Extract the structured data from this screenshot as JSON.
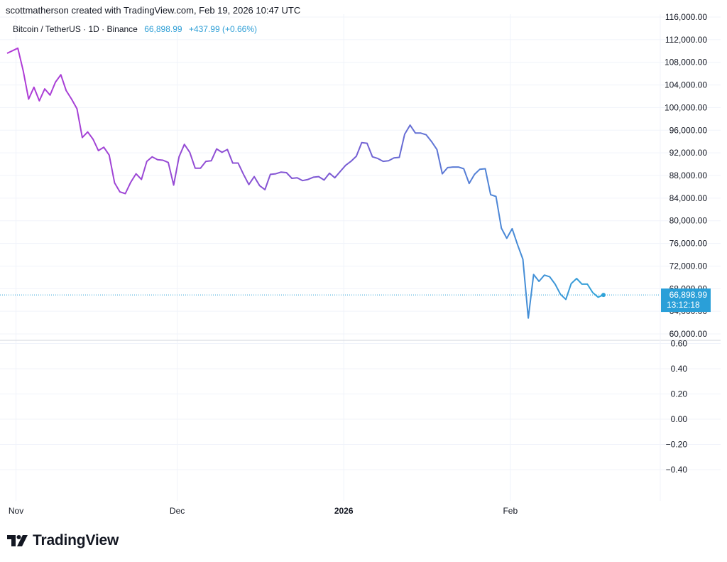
{
  "header": {
    "attribution": "scottmatherson created with TradingView.com, Feb 19, 2026 10:47 UTC"
  },
  "legend": {
    "symbol": "Bitcoin / TetherUS · 1D · Binance",
    "last_price": "66,898.99",
    "change": "+437.99 (+0.66%)"
  },
  "price_tag": {
    "price": "66,898.99",
    "countdown": "13:12:18"
  },
  "brand": {
    "name": "TradingView"
  },
  "colors": {
    "line_start": "#b13ad6",
    "line_mid": "#7b5ad3",
    "line_end": "#2fa3d8",
    "tag_bg": "#2a9fd8",
    "grid": "#f0f3fa",
    "axis_text": "#131722"
  },
  "chart_data": [
    {
      "type": "line",
      "title": "",
      "x_axis_labels": [
        {
          "label": "Nov",
          "date": "2025-11-01",
          "bold": false
        },
        {
          "label": "Dec",
          "date": "2025-12-01",
          "bold": false
        },
        {
          "label": "2026",
          "date": "2026-01-01",
          "bold": true
        },
        {
          "label": "Feb",
          "date": "2026-02-01",
          "bold": false
        }
      ],
      "y_ticks": [
        "116,000.00",
        "112,000.00",
        "108,000.00",
        "104,000.00",
        "100,000.00",
        "96,000.00",
        "92,000.00",
        "88,000.00",
        "84,000.00",
        "80,000.00",
        "76,000.00",
        "72,000.00",
        "68,000.00",
        "64,000.00",
        "60,000.00"
      ],
      "ylim": [
        59000,
        116500
      ],
      "grid": true,
      "current_price": 66898.99,
      "series": [
        {
          "points": [
            [
              "2025-10-31",
              109600
            ],
            [
              "2025-11-02",
              110500
            ],
            [
              "2025-11-03",
              106500
            ],
            [
              "2025-11-04",
              101500
            ],
            [
              "2025-11-05",
              103600
            ],
            [
              "2025-11-06",
              101200
            ],
            [
              "2025-11-07",
              103300
            ],
            [
              "2025-11-08",
              102200
            ],
            [
              "2025-11-09",
              104500
            ],
            [
              "2025-11-10",
              105800
            ],
            [
              "2025-11-11",
              103000
            ],
            [
              "2025-11-12",
              101500
            ],
            [
              "2025-11-13",
              99800
            ],
            [
              "2025-11-14",
              94700
            ],
            [
              "2025-11-15",
              95700
            ],
            [
              "2025-11-16",
              94400
            ],
            [
              "2025-11-17",
              92400
            ],
            [
              "2025-11-18",
              93000
            ],
            [
              "2025-11-19",
              91600
            ],
            [
              "2025-11-20",
              86700
            ],
            [
              "2025-11-21",
              85100
            ],
            [
              "2025-11-22",
              84800
            ],
            [
              "2025-11-23",
              86800
            ],
            [
              "2025-11-24",
              88300
            ],
            [
              "2025-11-25",
              87300
            ],
            [
              "2025-11-26",
              90500
            ],
            [
              "2025-11-27",
              91300
            ],
            [
              "2025-11-28",
              90800
            ],
            [
              "2025-11-29",
              90700
            ],
            [
              "2025-11-30",
              90300
            ],
            [
              "2025-12-01",
              86300
            ],
            [
              "2025-12-02",
              91300
            ],
            [
              "2025-12-03",
              93500
            ],
            [
              "2025-12-04",
              92100
            ],
            [
              "2025-12-05",
              89300
            ],
            [
              "2025-12-06",
              89300
            ],
            [
              "2025-12-07",
              90500
            ],
            [
              "2025-12-08",
              90600
            ],
            [
              "2025-12-09",
              92700
            ],
            [
              "2025-12-10",
              92100
            ],
            [
              "2025-12-11",
              92600
            ],
            [
              "2025-12-12",
              90200
            ],
            [
              "2025-12-13",
              90200
            ],
            [
              "2025-12-14",
              88200
            ],
            [
              "2025-12-15",
              86400
            ],
            [
              "2025-12-16",
              87800
            ],
            [
              "2025-12-17",
              86200
            ],
            [
              "2025-12-18",
              85500
            ],
            [
              "2025-12-19",
              88200
            ],
            [
              "2025-12-20",
              88300
            ],
            [
              "2025-12-21",
              88600
            ],
            [
              "2025-12-22",
              88500
            ],
            [
              "2025-12-23",
              87500
            ],
            [
              "2025-12-24",
              87600
            ],
            [
              "2025-12-25",
              87100
            ],
            [
              "2025-12-26",
              87300
            ],
            [
              "2025-12-27",
              87700
            ],
            [
              "2025-12-28",
              87800
            ],
            [
              "2025-12-29",
              87200
            ],
            [
              "2025-12-30",
              88400
            ],
            [
              "2025-12-31",
              87600
            ],
            [
              "2026-01-01",
              88700
            ],
            [
              "2026-01-02",
              89800
            ],
            [
              "2026-01-03",
              90500
            ],
            [
              "2026-01-04",
              91400
            ],
            [
              "2026-01-05",
              93800
            ],
            [
              "2026-01-06",
              93700
            ],
            [
              "2026-01-07",
              91300
            ],
            [
              "2026-01-08",
              91000
            ],
            [
              "2026-01-09",
              90500
            ],
            [
              "2026-01-10",
              90600
            ],
            [
              "2026-01-11",
              91100
            ],
            [
              "2026-01-12",
              91200
            ],
            [
              "2026-01-13",
              95300
            ],
            [
              "2026-01-14",
              96900
            ],
            [
              "2026-01-15",
              95500
            ],
            [
              "2026-01-16",
              95500
            ],
            [
              "2026-01-17",
              95200
            ],
            [
              "2026-01-18",
              94000
            ],
            [
              "2026-01-19",
              92600
            ],
            [
              "2026-01-20",
              88300
            ],
            [
              "2026-01-21",
              89400
            ],
            [
              "2026-01-22",
              89500
            ],
            [
              "2026-01-23",
              89500
            ],
            [
              "2026-01-24",
              89200
            ],
            [
              "2026-01-25",
              86600
            ],
            [
              "2026-01-26",
              88200
            ],
            [
              "2026-01-27",
              89100
            ],
            [
              "2026-01-28",
              89200
            ],
            [
              "2026-01-29",
              84600
            ],
            [
              "2026-01-30",
              84300
            ],
            [
              "2026-01-31",
              78700
            ],
            [
              "2026-02-01",
              76900
            ],
            [
              "2026-02-02",
              78600
            ],
            [
              "2026-02-03",
              75800
            ],
            [
              "2026-02-04",
              73200
            ],
            [
              "2026-02-05",
              62800
            ],
            [
              "2026-02-06",
              70500
            ],
            [
              "2026-02-07",
              69300
            ],
            [
              "2026-02-08",
              70400
            ],
            [
              "2026-02-09",
              70100
            ],
            [
              "2026-02-10",
              68800
            ],
            [
              "2026-02-11",
              67000
            ],
            [
              "2026-02-12",
              66100
            ],
            [
              "2026-02-13",
              68900
            ],
            [
              "2026-02-14",
              69800
            ],
            [
              "2026-02-15",
              68800
            ],
            [
              "2026-02-16",
              68800
            ],
            [
              "2026-02-17",
              67300
            ],
            [
              "2026-02-18",
              66500
            ],
            [
              "2026-02-19",
              66899
            ]
          ]
        }
      ]
    },
    {
      "type": "line",
      "title": "",
      "y_ticks": [
        "0.60",
        "0.40",
        "0.20",
        "0.00",
        "−0.20",
        "−0.40"
      ],
      "ylim": [
        -0.62,
        0.62
      ],
      "grid": true,
      "series": []
    }
  ]
}
